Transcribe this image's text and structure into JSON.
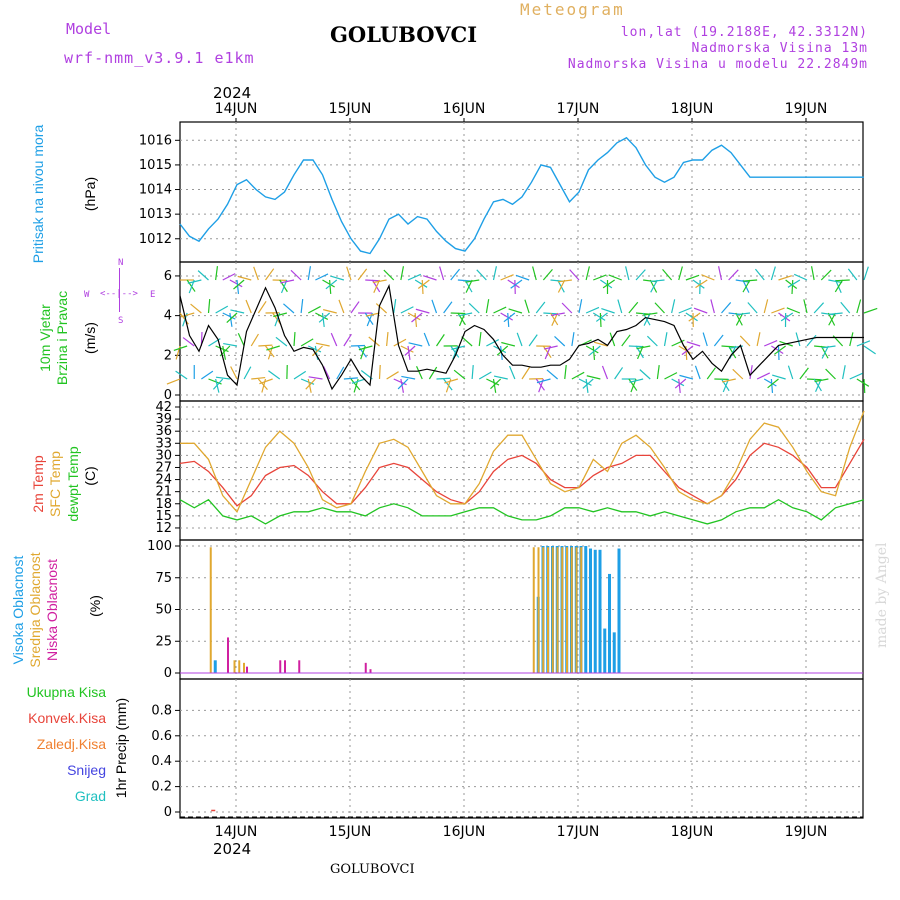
{
  "header": {
    "model_label": "Model",
    "model_name": "wrf-nmm_v3.9.1 e1km",
    "station": "GOLUBOVCI",
    "type": "Meteogram",
    "lonlat": "lon,lat (19.2188E, 42.3312N)",
    "altitude": "Nadmorska Visina 13m",
    "model_altitude": "Nadmorska Visina u modelu 22.2849m",
    "year_top": "2024",
    "year_bottom": "2024",
    "footer_station": "GOLUBOVCI",
    "credit": "made by Angel"
  },
  "colors": {
    "pressure": "#1e9fe6",
    "temp2m": "#e8443a",
    "sfc_temp": "#e0a830",
    "dewpoint": "#22c422",
    "high_cloud": "#1e9fe6",
    "mid_cloud": "#e0a830",
    "low_cloud": "#d020a0",
    "purple": "#b040e0",
    "wind_speed": "#000000"
  },
  "panel_labels": {
    "pressure": [
      "Pritisak na nivou mora",
      "(hPa)"
    ],
    "wind": [
      "10m Vjetar",
      "Brzina i Pravac",
      "(m/s)"
    ],
    "compass": {
      "n": "N",
      "s": "S",
      "w": "W",
      "e": "E",
      "arrow_up": "^",
      "arrow_down": "v"
    },
    "temp": [
      "2m Temp",
      "SFC Temp",
      "dewpt Temp",
      "(C)"
    ],
    "cloud": [
      "Visoka Oblacnost",
      "Srednja Oblacnost",
      "Niska Oblacnost",
      "(%)"
    ],
    "precip": [
      "Ukupna Kisa",
      "Konvek.Kisa",
      "Zaledj.Kisa",
      "Snijeg",
      "Grad"
    ],
    "precip_unit": "1hr Precip (mm)"
  },
  "precip_label_colors": [
    "#22c422",
    "#e8443a",
    "#f08030",
    "#4444e0",
    "#20c0c0"
  ],
  "dates": [
    "14JUN",
    "15JUN",
    "16JUN",
    "17JUN",
    "18JUN",
    "19JUN"
  ],
  "chart_data": [
    {
      "type": "line",
      "name": "pressure",
      "ylim": [
        1011.3,
        1016.5
      ],
      "yticks": [
        1012,
        1013,
        1014,
        1015,
        1016
      ],
      "xrange_hours": [
        0,
        144
      ],
      "x": [
        0,
        2,
        4,
        6,
        8,
        10,
        12,
        14,
        16,
        18,
        20,
        22,
        24,
        26,
        28,
        30,
        32,
        34,
        36,
        38,
        40,
        42,
        44,
        46,
        48,
        50,
        52,
        54,
        56,
        58,
        60,
        62,
        64,
        66,
        68,
        70,
        72,
        74,
        76,
        78,
        80,
        82,
        84,
        86,
        88,
        90,
        92,
        94,
        96,
        98,
        100,
        102,
        104,
        106,
        108,
        110,
        112,
        114,
        116,
        118,
        120,
        122,
        124,
        126,
        128,
        130,
        132,
        134,
        136,
        138,
        140,
        142,
        144
      ],
      "y": [
        1012.6,
        1012.1,
        1011.9,
        1012.4,
        1012.8,
        1013.4,
        1014.2,
        1014.4,
        1014.0,
        1013.7,
        1013.6,
        1013.9,
        1014.6,
        1015.2,
        1015.2,
        1014.6,
        1013.6,
        1012.7,
        1012.0,
        1011.5,
        1011.4,
        1012.0,
        1012.8,
        1013.0,
        1012.6,
        1012.9,
        1012.8,
        1012.3,
        1011.9,
        1011.6,
        1011.5,
        1012.0,
        1012.8,
        1013.5,
        1013.6,
        1013.4,
        1013.7,
        1014.3,
        1015.0,
        1014.9,
        1014.2,
        1013.5,
        1013.9,
        1014.8,
        1015.2,
        1015.5,
        1015.9,
        1016.1,
        1015.7,
        1015.0,
        1014.5,
        1014.3,
        1014.5,
        1015.1,
        1015.2,
        1015.2,
        1015.6,
        1015.8,
        1015.5,
        1015.0,
        1014.5,
        1014.5,
        1014.5,
        1014.5,
        1014.5,
        1014.5,
        1014.5,
        1014.5,
        1014.5,
        1014.5,
        1014.5,
        1014.5,
        1014.5
      ]
    },
    {
      "type": "line",
      "name": "wind_speed",
      "ylim": [
        0,
        6.4
      ],
      "yticks": [
        0,
        2,
        4,
        6
      ],
      "x": [
        0,
        2,
        4,
        6,
        8,
        10,
        12,
        14,
        16,
        18,
        20,
        22,
        24,
        26,
        28,
        30,
        32,
        34,
        36,
        38,
        40,
        42,
        44,
        46,
        48,
        50,
        52,
        54,
        56,
        58,
        60,
        62,
        64,
        66,
        68,
        70,
        72,
        74,
        76,
        78,
        80,
        82,
        84,
        86,
        88,
        90,
        92,
        94,
        96,
        98,
        100,
        102,
        104,
        106,
        108,
        110,
        112,
        114,
        116,
        118,
        120,
        122,
        124,
        126,
        128,
        130,
        132,
        134,
        136,
        138,
        140,
        142,
        144
      ],
      "y": [
        5.0,
        3.0,
        2.2,
        3.5,
        2.8,
        1.0,
        0.5,
        3.2,
        4.3,
        5.4,
        4.4,
        3.0,
        2.2,
        2.4,
        2.3,
        1.5,
        0.3,
        1.0,
        1.8,
        1.0,
        0.5,
        4.5,
        5.5,
        2.5,
        1.2,
        1.2,
        1.3,
        1.2,
        1.1,
        2.0,
        3.2,
        3.5,
        3.3,
        2.8,
        2.0,
        1.5,
        1.5,
        1.4,
        1.4,
        1.5,
        1.5,
        1.8,
        2.5,
        2.6,
        2.8,
        2.5,
        3.2,
        3.3,
        3.5,
        3.9,
        3.8,
        3.7,
        3.5,
        2.5,
        1.8,
        2.2,
        1.6,
        1.2,
        2.0,
        2.5,
        1.0,
        1.5,
        2.0,
        2.5,
        2.6,
        2.7,
        2.8,
        2.9,
        2.9,
        2.9,
        2.9,
        2.9,
        2.9
      ]
    },
    {
      "type": "line",
      "name": "temperature",
      "ylim": [
        10.5,
        42
      ],
      "yticks": [
        12,
        15,
        18,
        21,
        24,
        27,
        30,
        33,
        36,
        39,
        42
      ],
      "x": [
        0,
        3,
        6,
        9,
        12,
        15,
        18,
        21,
        24,
        27,
        30,
        33,
        36,
        39,
        42,
        45,
        48,
        51,
        54,
        57,
        60,
        63,
        66,
        69,
        72,
        75,
        78,
        81,
        84,
        87,
        90,
        93,
        96,
        99,
        102,
        105,
        108,
        111,
        114,
        117,
        120,
        123,
        126,
        129,
        132,
        135,
        138,
        141,
        144
      ],
      "series": [
        {
          "name": "2m Temp",
          "values": [
            28,
            28.5,
            26,
            22,
            17.5,
            20,
            25,
            27,
            27.5,
            25,
            21,
            18,
            18,
            22,
            27,
            28,
            27,
            24,
            21,
            19,
            18,
            21,
            26,
            29,
            30,
            28,
            24,
            22,
            22,
            25,
            27,
            28,
            30,
            30,
            26,
            22,
            20,
            18,
            20,
            24,
            30,
            33,
            32,
            30,
            27,
            22,
            22,
            28,
            34
          ]
        },
        {
          "name": "SFC Temp",
          "values": [
            33,
            33,
            29,
            20,
            16,
            24,
            32,
            36,
            33,
            27,
            19,
            17,
            18,
            26,
            33,
            34,
            32,
            26,
            20,
            18,
            18,
            23,
            31,
            35,
            35,
            29,
            23,
            21,
            22,
            29,
            26,
            33,
            35,
            32,
            27,
            21,
            19,
            18,
            20,
            26,
            34,
            38,
            37,
            32,
            26,
            21,
            20,
            32,
            41
          ]
        },
        {
          "name": "dewpt Temp",
          "values": [
            19,
            17,
            19,
            15,
            14,
            15,
            13,
            15,
            16,
            16,
            17,
            16,
            16,
            15,
            17,
            18,
            17,
            15,
            15,
            15,
            16,
            17,
            17,
            15,
            14,
            14,
            15,
            17,
            17,
            16,
            17,
            16,
            16,
            15,
            16,
            15,
            14,
            13,
            14,
            16,
            17,
            17,
            19,
            17,
            16,
            14,
            17,
            18,
            19
          ]
        }
      ]
    },
    {
      "type": "bar",
      "name": "cloud_cover",
      "ylim": [
        0,
        100
      ],
      "yticks": [
        0,
        25,
        50,
        75,
        100
      ],
      "series": [
        {
          "name": "Visoka Oblacnost",
          "x": [
            7,
            75,
            76,
            77,
            78,
            79,
            80,
            81,
            82,
            83,
            84,
            85,
            86,
            87,
            88,
            89,
            90,
            91,
            92
          ],
          "values": [
            10,
            60,
            100,
            100,
            100,
            100,
            100,
            100,
            100,
            100,
            100,
            100,
            98,
            97,
            97,
            35,
            78,
            32,
            98
          ]
        },
        {
          "name": "Srednja Oblacnost",
          "x": [
            7,
            12,
            13,
            14,
            75,
            76,
            77,
            78,
            79,
            80,
            81,
            82,
            83,
            84,
            85
          ],
          "values": [
            99,
            10,
            10,
            8,
            99,
            99,
            99,
            99,
            99,
            99,
            99,
            99,
            99,
            99,
            99
          ]
        },
        {
          "name": "Niska Oblacnost",
          "x": [
            10,
            14,
            21,
            22,
            25,
            39,
            40
          ],
          "values": [
            28,
            5,
            10,
            10,
            10,
            8,
            3
          ]
        }
      ]
    },
    {
      "type": "bar",
      "name": "precipitation",
      "ylim": [
        0,
        1
      ],
      "yticks": [
        0,
        0.2,
        0.4,
        0.6,
        0.8
      ],
      "series": [
        {
          "name": "Konvek.Kisa",
          "x": [
            7
          ],
          "values": [
            0.01
          ]
        }
      ]
    }
  ]
}
